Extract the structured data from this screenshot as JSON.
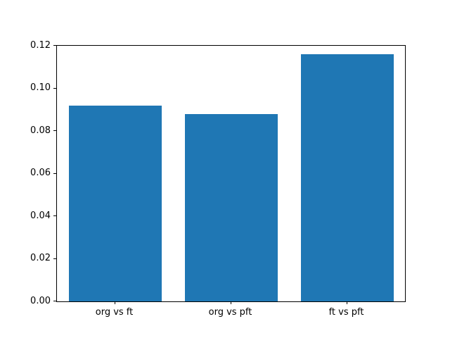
{
  "chart_data": {
    "type": "bar",
    "categories": [
      "org vs ft",
      "org vs pft",
      "ft vs pft"
    ],
    "values": [
      0.092,
      0.088,
      0.116
    ],
    "title": "",
    "xlabel": "",
    "ylabel": "",
    "ylim": [
      0,
      0.12
    ],
    "yticks": [
      0.0,
      0.02,
      0.04,
      0.06,
      0.08,
      0.1,
      0.12
    ],
    "ytick_labels": [
      "0.00",
      "0.02",
      "0.04",
      "0.06",
      "0.08",
      "0.10",
      "0.12"
    ],
    "bar_color": "#1f77b4",
    "bar_width_fraction": 0.8,
    "grid": false,
    "legend": null,
    "background_color": "#ffffff",
    "spine_color": "#000000"
  }
}
